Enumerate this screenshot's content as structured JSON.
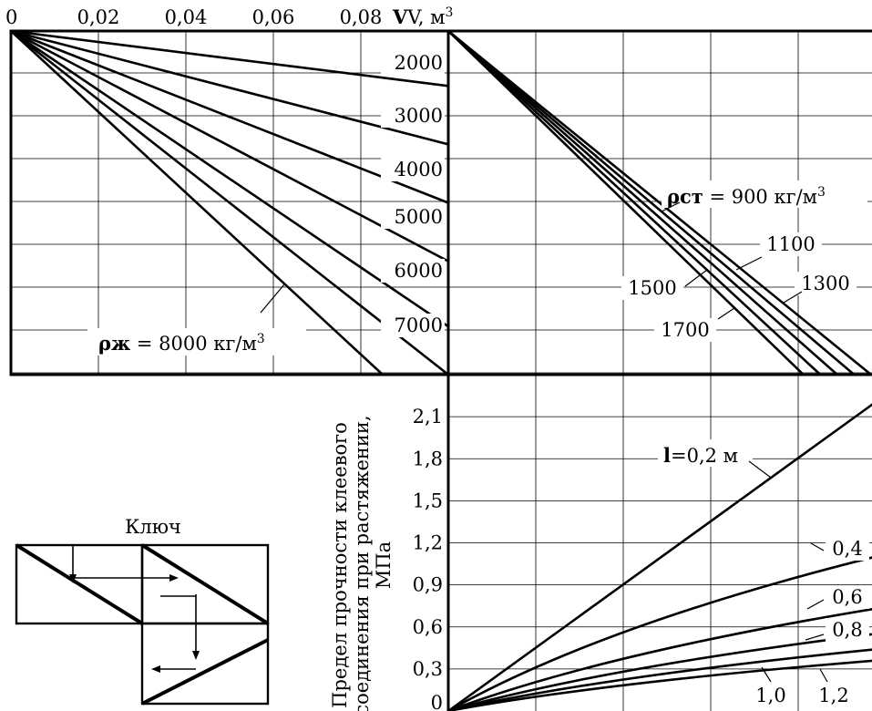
{
  "chart_data": [
    {
      "type": "line",
      "panel": "top-left",
      "x_axis_title": "V, м",
      "x_axis_title_superscript": "3",
      "x_ticks": [
        "0",
        "0,02",
        "0,04",
        "0,06",
        "0,08"
      ],
      "xlim": [
        0,
        0.1
      ],
      "y_direction": "down",
      "series": [
        {
          "name": "2000",
          "slope_endpoint": [
            0.1,
            0.16
          ]
        },
        {
          "name": "3000",
          "slope_endpoint": [
            0.1,
            0.33
          ]
        },
        {
          "name": "4000",
          "slope_endpoint": [
            0.1,
            0.5
          ]
        },
        {
          "name": "5000",
          "slope_endpoint": [
            0.1,
            0.67
          ]
        },
        {
          "name": "6000",
          "slope_endpoint": [
            0.1,
            0.86
          ]
        },
        {
          "name": "7000",
          "slope_endpoint": [
            0.1,
            1.0
          ]
        },
        {
          "name": "8000",
          "slope_endpoint": [
            0.085,
            1.0
          ]
        }
      ],
      "annotation_prefix": "ρж",
      "annotation_text": " = 8000 кг/м",
      "annotation_superscript": "3"
    },
    {
      "type": "line",
      "panel": "top-right",
      "y_direction": "down",
      "series": [
        {
          "name": "900",
          "endpoint_x": 1.0
        },
        {
          "name": "1100",
          "endpoint_x": 0.96
        },
        {
          "name": "1300",
          "endpoint_x": 0.92
        },
        {
          "name": "1500",
          "endpoint_x": 0.88
        },
        {
          "name": "1700",
          "endpoint_x": 0.84
        }
      ],
      "annotation_prefix": "ρст",
      "annotation_text": " = 900 кг/м",
      "annotation_superscript": "3"
    },
    {
      "type": "line",
      "panel": "bottom-right",
      "y_axis_title_lines": [
        "Предел прочности клеевого",
        "соединения при растяжении,",
        "МПа"
      ],
      "y_ticks": [
        "0",
        "0,3",
        "0,6",
        "0,9",
        "1,2",
        "1,5",
        "1,8",
        "2,1"
      ],
      "ylim": [
        0,
        2.4
      ],
      "series": [
        {
          "name": "0,2 м",
          "label_prefix": "l",
          "label_text": "=0,2 м",
          "y_at_right": 2.2
        },
        {
          "name": "0,4",
          "y_at_right": 1.1
        },
        {
          "name": "0,6",
          "y_at_right": 0.73
        },
        {
          "name": "0,8",
          "y_at_right": 0.55
        },
        {
          "name": "1,0",
          "y_at_right": 0.44
        },
        {
          "name": "1,2",
          "y_at_right": 0.36
        }
      ]
    }
  ],
  "key": {
    "title": "Ключ"
  }
}
